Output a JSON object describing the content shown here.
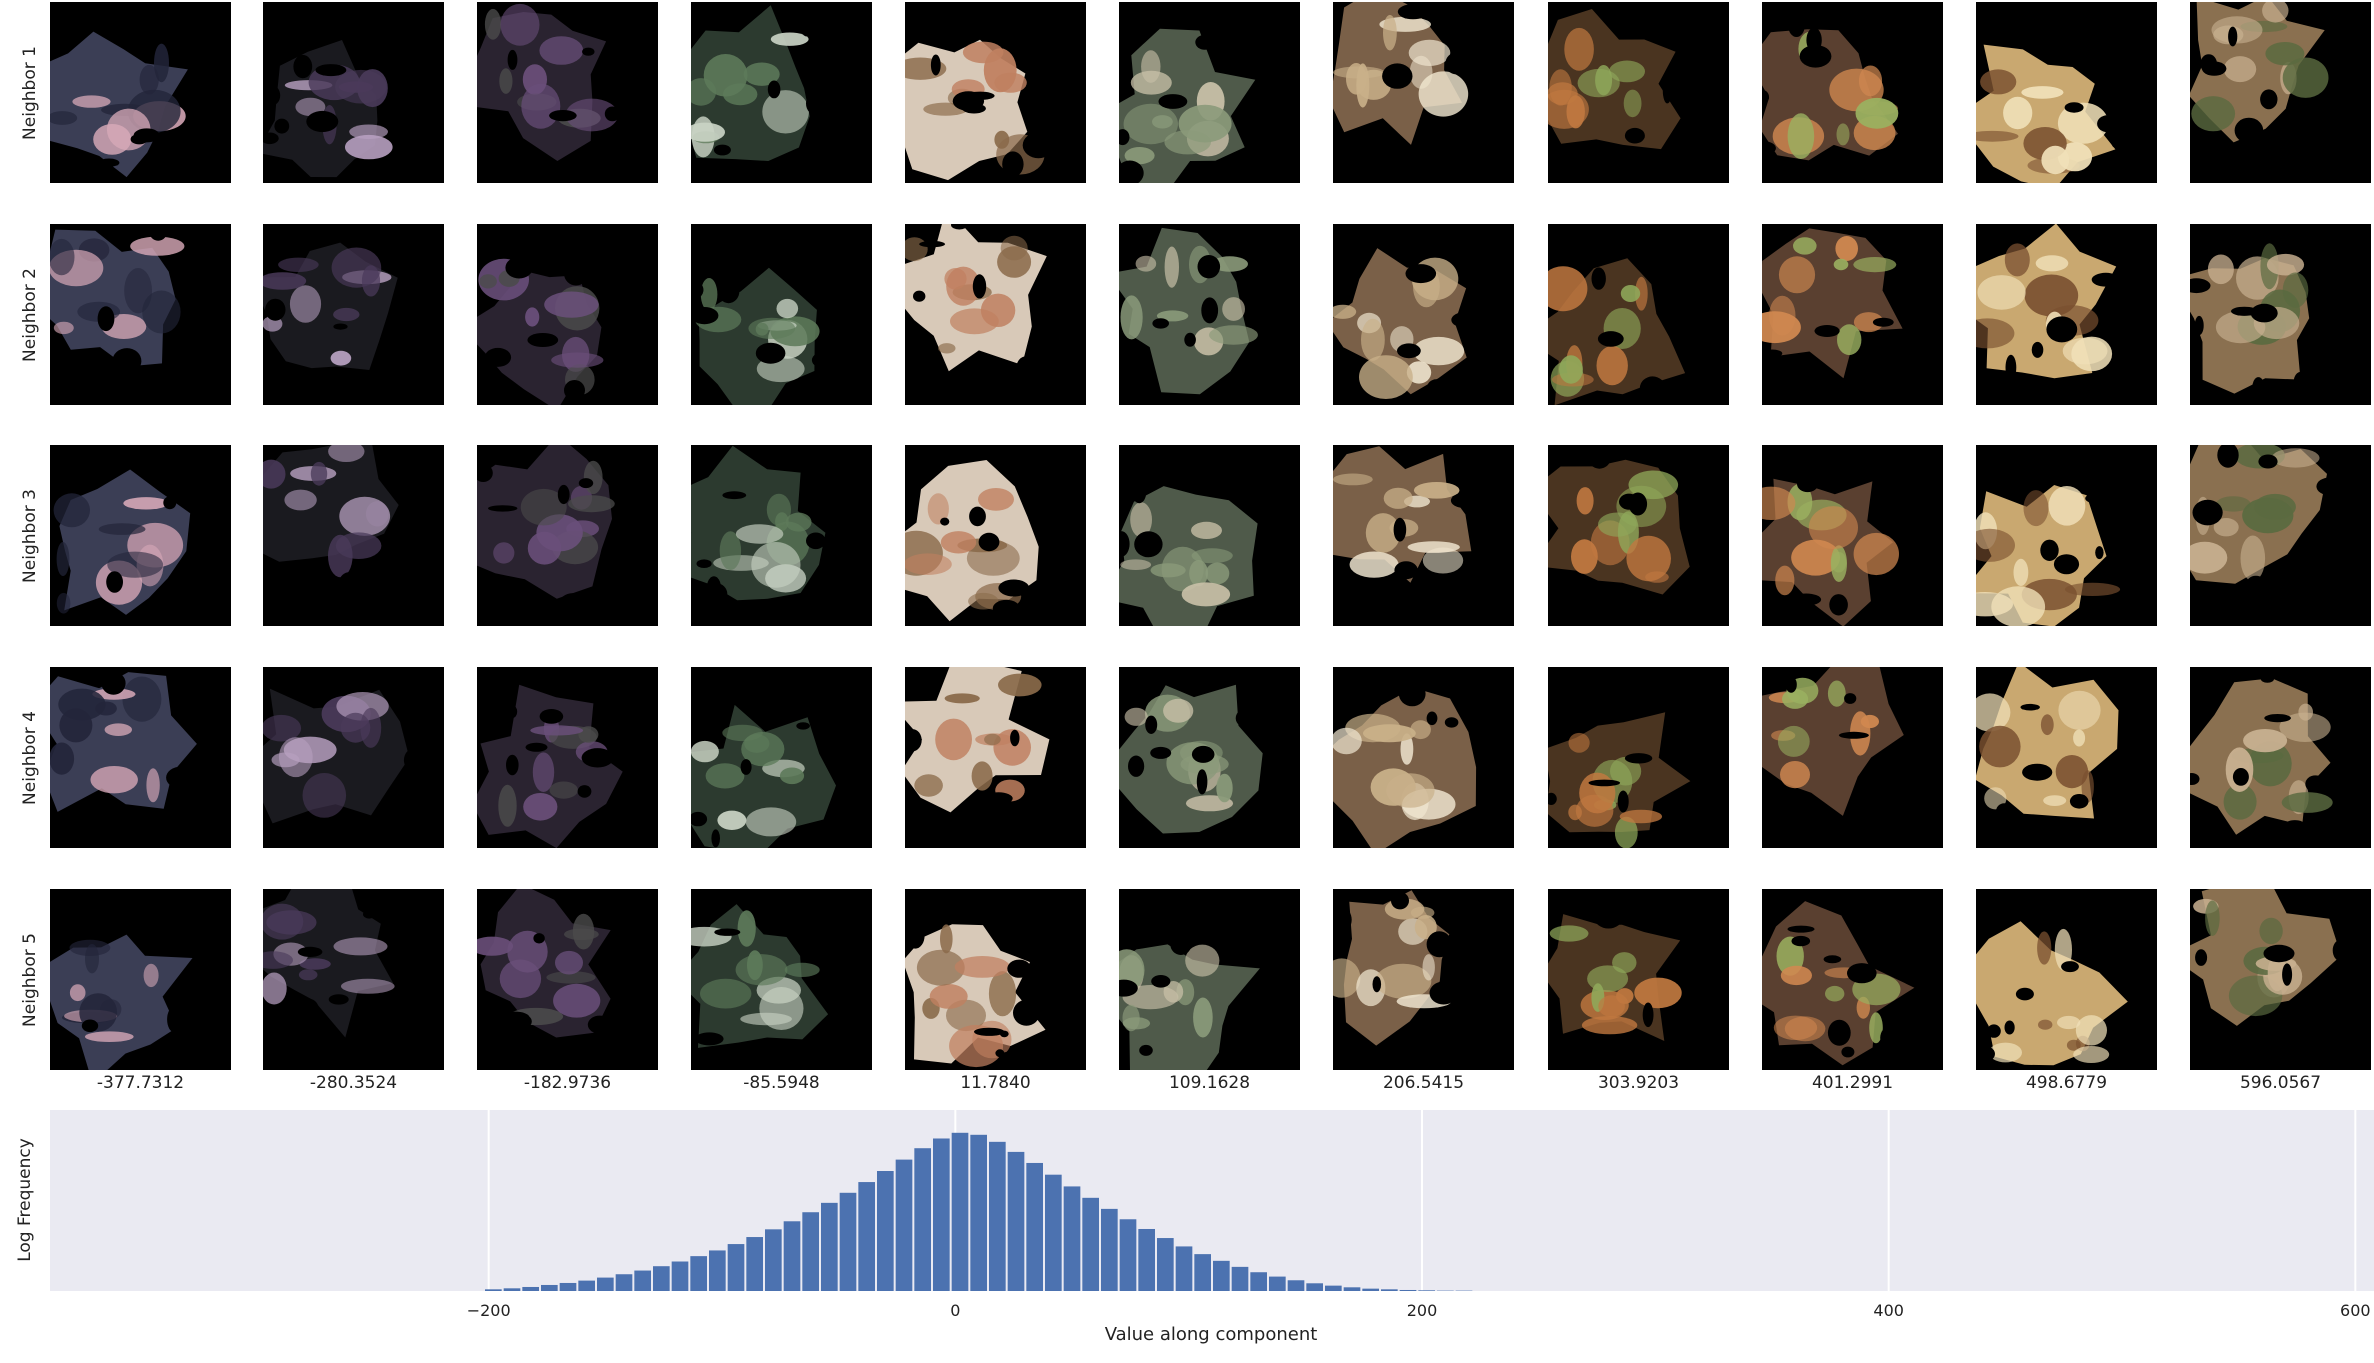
{
  "row_labels": [
    "Neighbor 1",
    "Neighbor 2",
    "Neighbor 3",
    "Neighbor 4",
    "Neighbor 5"
  ],
  "column_values": [
    "-377.7312",
    "-280.3524",
    "-182.9736",
    "-85.5948",
    "11.7840",
    "109.1628",
    "206.5415",
    "303.9203",
    "401.2991",
    "498.6779",
    "596.0567"
  ],
  "thumbnail_palettes": [
    [
      "#3b3e55",
      "#23253a",
      "#d8a9b8"
    ],
    [
      "#1a1a1f",
      "#4a3a5a",
      "#b7a0c0"
    ],
    [
      "#2a2330",
      "#6a4f7a",
      "#4b4b4b"
    ],
    [
      "#2c3a2f",
      "#5d7a5a",
      "#c9d3c4"
    ],
    [
      "#d8c9b8",
      "#8a6a4a",
      "#c08060"
    ],
    [
      "#4f5a4a",
      "#8a9a7a",
      "#c9c0a8"
    ],
    [
      "#7a6048",
      "#c9b089",
      "#f0e6d0"
    ],
    [
      "#4a3420",
      "#c07840",
      "#8fa85a"
    ],
    [
      "#5a4030",
      "#d08850",
      "#9ab060"
    ],
    [
      "#c9a870",
      "#f0e0b8",
      "#7a5030"
    ],
    [
      "#8a7050",
      "#c8b090",
      "#5a6a40"
    ]
  ],
  "chart_data": {
    "type": "bar",
    "xlabel": "Value along component",
    "ylabel": "Log Frequency",
    "xlim": [
      -388,
      608
    ],
    "ylim": [
      0,
      5.4
    ],
    "xticks": [
      -200,
      0,
      200,
      400,
      600
    ],
    "xtick_labels": [
      "−200",
      "0",
      "200",
      "400",
      "600"
    ],
    "grid": true,
    "bar_color": "#4c72b0",
    "bin_width": 4,
    "bin_center_range": [
      -198,
      218
    ],
    "values_note_free": true,
    "bins_x": [
      -198,
      -190,
      -182,
      -174,
      -166,
      -158,
      -150,
      -142,
      -134,
      -126,
      -118,
      -110,
      -102,
      -94,
      -86,
      -78,
      -70,
      -62,
      -54,
      -46,
      -38,
      -30,
      -22,
      -14,
      -6,
      2,
      10,
      18,
      26,
      34,
      42,
      50,
      58,
      66,
      74,
      82,
      90,
      98,
      106,
      114,
      122,
      130,
      138,
      146,
      154,
      162,
      170,
      178,
      186,
      194,
      202,
      210,
      218
    ],
    "bins_y": [
      0.05,
      0.08,
      0.12,
      0.18,
      0.24,
      0.31,
      0.4,
      0.5,
      0.61,
      0.74,
      0.88,
      1.04,
      1.21,
      1.4,
      1.61,
      1.84,
      2.08,
      2.35,
      2.63,
      2.93,
      3.25,
      3.58,
      3.92,
      4.26,
      4.55,
      4.72,
      4.66,
      4.45,
      4.15,
      3.82,
      3.47,
      3.12,
      2.78,
      2.45,
      2.14,
      1.85,
      1.58,
      1.33,
      1.1,
      0.9,
      0.72,
      0.56,
      0.43,
      0.32,
      0.23,
      0.16,
      0.11,
      0.07,
      0.05,
      0.03,
      0.02,
      0.01,
      0.01
    ]
  }
}
